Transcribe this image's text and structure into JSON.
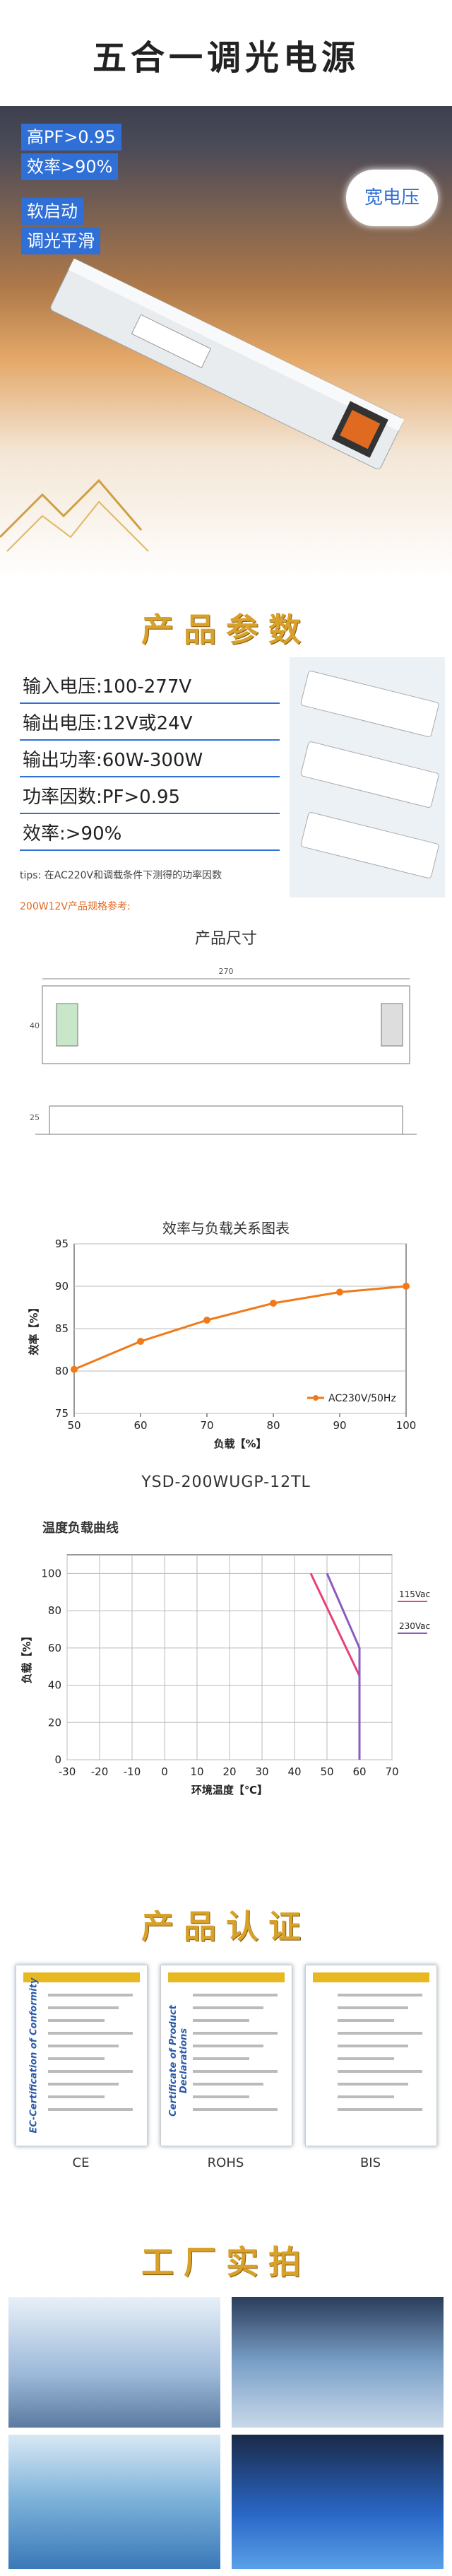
{
  "hero": {
    "title": "五合一调光电源",
    "badges": [
      "高PF>0.95",
      "效率>90%"
    ],
    "badges2": [
      "软启动",
      "调光平滑"
    ],
    "bubble": "宽电压"
  },
  "params": {
    "heading": "产品参数",
    "items": [
      "输入电压:100-277V",
      "输出电压:12V或24V",
      "输出功率:60W-300W",
      "功率因数:PF>0.95",
      "效率:>90%"
    ],
    "tips": "tips: 在AC220V和调载条件下测得的功率因数",
    "note": "200W12V产品规格参考:"
  },
  "size": {
    "heading": "产品尺寸",
    "dims": [
      "270",
      "40",
      "25"
    ]
  },
  "efficiency_chart": {
    "type": "line",
    "title": "效率与负载关系图表",
    "x": [
      50,
      60,
      70,
      80,
      90,
      100
    ],
    "series": [
      {
        "name": "AC230V/50Hz",
        "color": "#f07a1a",
        "values": [
          80.2,
          83.5,
          86,
          88,
          89.3,
          90
        ]
      }
    ],
    "xlim": [
      50,
      100
    ],
    "xticks": [
      50,
      60,
      70,
      80,
      90,
      100
    ],
    "ylim": [
      75,
      95
    ],
    "yticks": [
      75,
      80,
      85,
      90,
      95
    ],
    "xlabel": "负载【%】",
    "ylabel": "效率【%】",
    "grid": "y",
    "markers": true,
    "legend": "lower right"
  },
  "model": "YSD-200WUGP-12TL",
  "derating_chart": {
    "type": "line",
    "title": "温度负载曲线",
    "series": [
      {
        "name": "115Vac",
        "color": "#e8407a",
        "x": [
          45,
          60,
          60
        ],
        "values": [
          100,
          45,
          0
        ]
      },
      {
        "name": "230Vac",
        "color": "#8a5cc0",
        "x": [
          50,
          60,
          60
        ],
        "values": [
          100,
          60,
          0
        ]
      }
    ],
    "xlim": [
      -30,
      70
    ],
    "xticks": [
      -30,
      -20,
      -10,
      0,
      10,
      20,
      30,
      40,
      50,
      60,
      70
    ],
    "ylim": [
      0,
      110
    ],
    "yticks": [
      0,
      20,
      40,
      60,
      80,
      100
    ],
    "xlabel": "环境温度【℃】",
    "ylabel": "负载【%】",
    "grid": "both",
    "markers": false,
    "legend": "right outside"
  },
  "cert": {
    "heading": "产品认证",
    "titles": [
      "EC-Certification of Conformity",
      "Certificate of Product Declarations"
    ],
    "labels": [
      "CE",
      "ROHS",
      "BIS"
    ]
  },
  "factory": {
    "heading": "工厂实拍"
  }
}
